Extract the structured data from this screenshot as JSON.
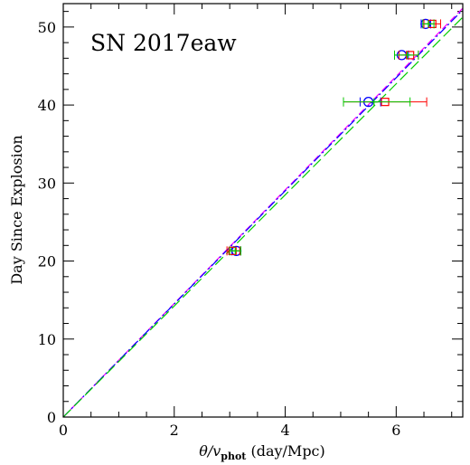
{
  "chart_data": {
    "type": "scatter",
    "title": "SN 2017eaw",
    "xlabel": {
      "main": "θ/v",
      "sub": "phot",
      "rest": " (day/Mpc)"
    },
    "ylabel": "Day Since Explosion",
    "xlim": [
      0,
      7.2
    ],
    "ylim": [
      0,
      53
    ],
    "xticks": [
      0,
      2,
      4,
      6
    ],
    "yticks": [
      0,
      10,
      20,
      30,
      40,
      50
    ],
    "x_minor_step": 0.5,
    "y_minor_step": 2,
    "fit_lines": [
      {
        "color": "#ff00ff",
        "dash": "dashed",
        "slope": 7.28
      },
      {
        "color": "#0000ff",
        "dash": "dashdot",
        "slope": 7.25
      },
      {
        "color": "#00cc00",
        "dash": "longdash",
        "slope": 7.12
      }
    ],
    "series": [
      {
        "color": "#0000ff",
        "marker": "circle",
        "points": [
          {
            "x": 3.12,
            "y": 21.3,
            "xmin": 3.04,
            "xmax": 3.2
          },
          {
            "x": 5.5,
            "y": 40.4,
            "xmin": 5.35,
            "xmax": 5.72
          },
          {
            "x": 6.1,
            "y": 46.4,
            "xmin": 5.97,
            "xmax": 6.22
          },
          {
            "x": 6.53,
            "y": 50.4,
            "xmin": 6.45,
            "xmax": 6.62
          }
        ]
      },
      {
        "color": "#ff0000",
        "marker": "square",
        "points": [
          {
            "x": 3.05,
            "y": 21.3,
            "xmin": 2.95,
            "xmax": 3.18
          },
          {
            "x": 5.8,
            "y": 40.4,
            "xmin": 5.05,
            "xmax": 6.55
          },
          {
            "x": 6.25,
            "y": 46.4,
            "xmin": 6.05,
            "xmax": 6.4
          },
          {
            "x": 6.65,
            "y": 50.4,
            "xmin": 6.5,
            "xmax": 6.8
          }
        ]
      },
      {
        "color": "#00cc00",
        "marker": "plus",
        "points": [
          {
            "x": 3.1,
            "y": 21.3,
            "xmin": 3.0,
            "xmax": 3.2
          },
          {
            "x": 5.6,
            "y": 40.4,
            "xmin": 5.05,
            "xmax": 6.25
          },
          {
            "x": 6.2,
            "y": 46.4,
            "xmin": 5.97,
            "xmax": 6.4
          },
          {
            "x": 6.58,
            "y": 50.4,
            "xmin": 6.48,
            "xmax": 6.68
          }
        ]
      }
    ]
  }
}
